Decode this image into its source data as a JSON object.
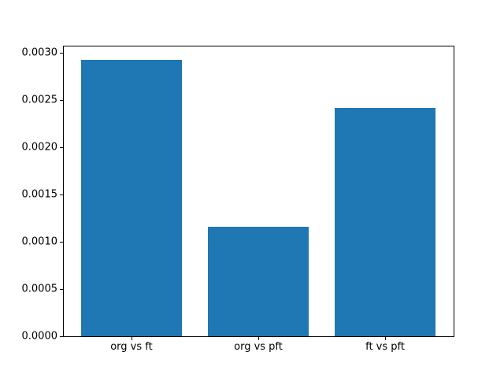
{
  "chart_data": {
    "type": "bar",
    "categories": [
      "org vs ft",
      "org vs pft",
      "ft vs pft"
    ],
    "values": [
      0.00293,
      0.00116,
      0.00242
    ],
    "title": "",
    "xlabel": "",
    "ylabel": "",
    "ylim": [
      0,
      0.003077
    ],
    "yticks": [
      0.0,
      0.0005,
      0.001,
      0.0015,
      0.002,
      0.0025,
      0.003
    ],
    "ytick_labels": [
      "0.0000",
      "0.0005",
      "0.0010",
      "0.0015",
      "0.0020",
      "0.0025",
      "0.0030"
    ],
    "bar_color": "#1f77b4",
    "axes_edge_color": "#000000",
    "tick_color": "#000000",
    "background_color": "#ffffff",
    "grid": false,
    "legend": null,
    "bar_width_fraction": 0.8,
    "xlim": [
      -0.54,
      2.54
    ]
  }
}
